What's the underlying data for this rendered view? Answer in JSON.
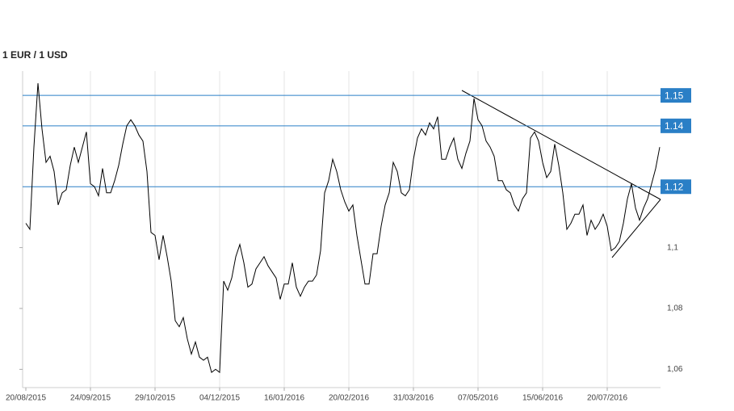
{
  "chart_data": {
    "type": "line",
    "title": "1 EUR / 1 USD",
    "categories": [
      "20/08/2015",
      null,
      null,
      null,
      null,
      null,
      null,
      null,
      null,
      null,
      null,
      null,
      null,
      null,
      null,
      null,
      "24/09/2015",
      null,
      null,
      null,
      null,
      null,
      null,
      null,
      null,
      null,
      null,
      null,
      null,
      null,
      null,
      null,
      "29/10/2015",
      null,
      null,
      null,
      null,
      null,
      null,
      null,
      null,
      null,
      null,
      null,
      null,
      null,
      null,
      null,
      "04/12/2015",
      null,
      null,
      null,
      null,
      null,
      null,
      null,
      null,
      null,
      null,
      null,
      null,
      null,
      null,
      null,
      "16/01/2016",
      null,
      null,
      null,
      null,
      null,
      null,
      null,
      null,
      null,
      null,
      null,
      null,
      null,
      null,
      null,
      "20/02/2016",
      null,
      null,
      null,
      null,
      null,
      null,
      null,
      null,
      null,
      null,
      null,
      null,
      null,
      null,
      null,
      "31/03/2016",
      null,
      null,
      null,
      null,
      null,
      null,
      null,
      null,
      null,
      null,
      null,
      null,
      null,
      null,
      null,
      "07/05/2016",
      null,
      null,
      null,
      null,
      null,
      null,
      null,
      null,
      null,
      null,
      null,
      null,
      null,
      null,
      null,
      "15/06/2016",
      null,
      null,
      null,
      null,
      null,
      null,
      null,
      null,
      null,
      null,
      null,
      null,
      null,
      null,
      null,
      "20/07/2016",
      null,
      null,
      null,
      null,
      null,
      null,
      null,
      null,
      null,
      null,
      null,
      null,
      null
    ],
    "values": [
      1.108,
      1.106,
      1.133,
      1.154,
      1.139,
      1.128,
      1.13,
      1.125,
      1.114,
      1.118,
      1.119,
      1.127,
      1.133,
      1.128,
      1.133,
      1.138,
      1.121,
      1.12,
      1.117,
      1.126,
      1.118,
      1.118,
      1.122,
      1.127,
      1.134,
      1.14,
      1.142,
      1.14,
      1.137,
      1.135,
      1.125,
      1.105,
      1.104,
      1.096,
      1.104,
      1.097,
      1.089,
      1.076,
      1.074,
      1.077,
      1.07,
      1.065,
      1.069,
      1.064,
      1.063,
      1.064,
      1.059,
      1.06,
      1.059,
      1.089,
      1.086,
      1.09,
      1.097,
      1.101,
      1.095,
      1.087,
      1.088,
      1.093,
      1.095,
      1.097,
      1.094,
      1.092,
      1.09,
      1.083,
      1.088,
      1.088,
      1.095,
      1.087,
      1.084,
      1.087,
      1.089,
      1.089,
      1.091,
      1.099,
      1.118,
      1.122,
      1.129,
      1.125,
      1.119,
      1.115,
      1.112,
      1.114,
      1.104,
      1.096,
      1.088,
      1.088,
      1.098,
      1.098,
      1.107,
      1.114,
      1.118,
      1.128,
      1.125,
      1.118,
      1.117,
      1.119,
      1.129,
      1.136,
      1.139,
      1.137,
      1.141,
      1.139,
      1.143,
      1.129,
      1.129,
      1.133,
      1.136,
      1.129,
      1.126,
      1.131,
      1.135,
      1.149,
      1.142,
      1.14,
      1.135,
      1.133,
      1.13,
      1.122,
      1.122,
      1.119,
      1.118,
      1.114,
      1.112,
      1.116,
      1.118,
      1.136,
      1.138,
      1.135,
      1.128,
      1.123,
      1.125,
      1.134,
      1.127,
      1.118,
      1.106,
      1.108,
      1.111,
      1.111,
      1.114,
      1.104,
      1.109,
      1.106,
      1.108,
      1.111,
      1.107,
      1.099,
      1.1,
      1.102,
      1.108,
      1.116,
      1.121,
      1.113,
      1.109,
      1.113,
      1.116,
      1.121,
      1.126,
      1.133
    ],
    "color": "#000000",
    "ylim": [
      1.054,
      1.158
    ],
    "yticks": [
      {
        "value": 1.06,
        "label": "1,06"
      },
      {
        "value": 1.08,
        "label": "1,08"
      },
      {
        "value": 1.1,
        "label": "1,1"
      }
    ],
    "levels": [
      1.15,
      1.14,
      1.12
    ],
    "level_color": "#2a7fc6",
    "grid": true
  }
}
